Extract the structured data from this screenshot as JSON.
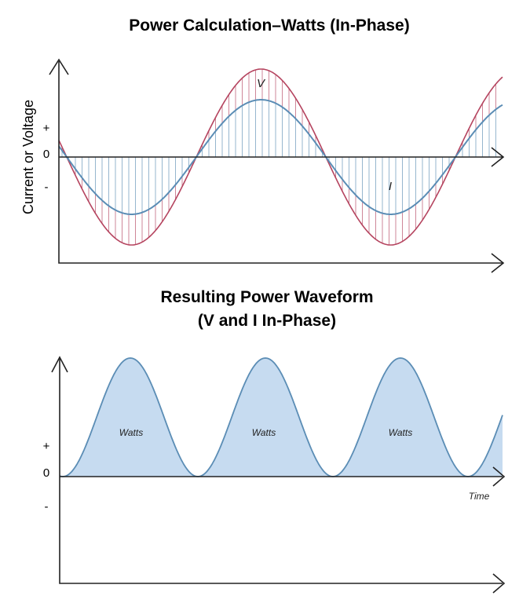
{
  "top": {
    "title": "Power Calculation–Watts (In-Phase)",
    "y_axis_label": "Current or Voltage",
    "tick_plus": "+",
    "tick_zero": "0",
    "tick_minus": "-",
    "voltage_label": "V",
    "current_label": "I",
    "colors": {
      "voltage": "#b5445f",
      "current": "#5b8db5"
    }
  },
  "bottom": {
    "title_line1": "Resulting Power Waveform",
    "title_line2": "(V and I In-Phase)",
    "tick_plus": "+",
    "tick_zero": "0",
    "tick_minus": "-",
    "watts_labels": [
      "Watts",
      "Watts",
      "Watts"
    ],
    "x_axis_label": "Time",
    "colors": {
      "fill": "#c6dbf0",
      "line": "#5b8db5"
    }
  }
}
